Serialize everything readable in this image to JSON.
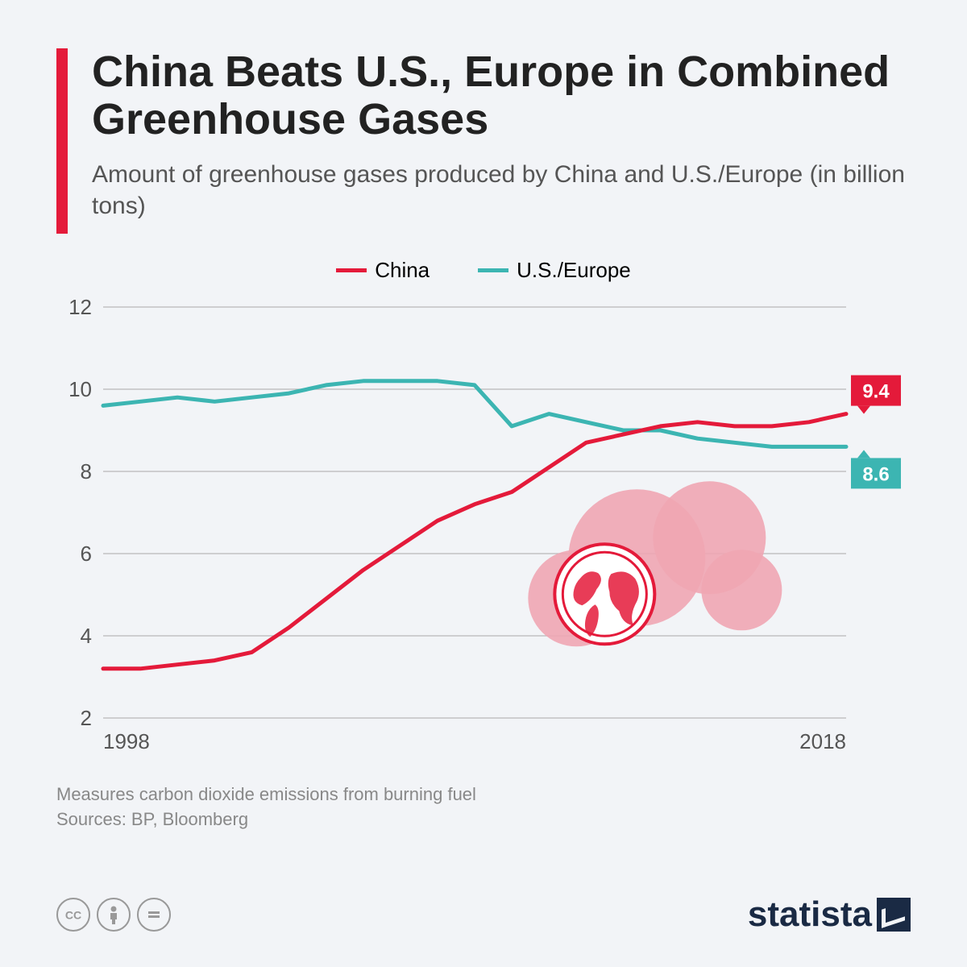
{
  "title": "China Beats U.S., Europe in Combined Greenhouse Gases",
  "subtitle": "Amount of greenhouse gases produced by China and U.S./Europe (in billion tons)",
  "legend": {
    "china": {
      "label": "China",
      "color": "#e41a3a"
    },
    "us_eu": {
      "label": "U.S./Europe",
      "color": "#3cb5b2"
    }
  },
  "chart": {
    "type": "line",
    "background_color": "#f2f4f7",
    "grid_color": "#b8b8b8",
    "axis_text_color": "#555",
    "tick_fontsize": 26,
    "x_range": [
      1998,
      2018
    ],
    "x_ticks": [
      1998,
      2018
    ],
    "y_range": [
      2,
      12
    ],
    "y_ticks": [
      2,
      4,
      6,
      8,
      10,
      12
    ],
    "line_width": 5,
    "series": {
      "china": {
        "color": "#e41a3a",
        "end_label": "9.4",
        "label_bg": "#e41a3a",
        "points": [
          [
            1998,
            3.2
          ],
          [
            1999,
            3.2
          ],
          [
            2000,
            3.3
          ],
          [
            2001,
            3.4
          ],
          [
            2002,
            3.6
          ],
          [
            2003,
            4.2
          ],
          [
            2004,
            4.9
          ],
          [
            2005,
            5.6
          ],
          [
            2006,
            6.2
          ],
          [
            2007,
            6.8
          ],
          [
            2008,
            7.2
          ],
          [
            2009,
            7.5
          ],
          [
            2010,
            8.1
          ],
          [
            2011,
            8.7
          ],
          [
            2012,
            8.9
          ],
          [
            2013,
            9.1
          ],
          [
            2014,
            9.2
          ],
          [
            2015,
            9.1
          ],
          [
            2016,
            9.1
          ],
          [
            2017,
            9.2
          ],
          [
            2018,
            9.4
          ]
        ]
      },
      "us_eu": {
        "color": "#3cb5b2",
        "end_label": "8.6",
        "label_bg": "#3cb5b2",
        "points": [
          [
            1998,
            9.6
          ],
          [
            1999,
            9.7
          ],
          [
            2000,
            9.8
          ],
          [
            2001,
            9.7
          ],
          [
            2002,
            9.8
          ],
          [
            2003,
            9.9
          ],
          [
            2004,
            10.1
          ],
          [
            2005,
            10.2
          ],
          [
            2006,
            10.2
          ],
          [
            2007,
            10.2
          ],
          [
            2008,
            10.1
          ],
          [
            2009,
            9.1
          ],
          [
            2010,
            9.4
          ],
          [
            2011,
            9.2
          ],
          [
            2012,
            9.0
          ],
          [
            2013,
            9.0
          ],
          [
            2014,
            8.8
          ],
          [
            2015,
            8.7
          ],
          [
            2016,
            8.6
          ],
          [
            2017,
            8.6
          ],
          [
            2018,
            8.6
          ]
        ]
      }
    },
    "globe": {
      "cx_year": 2011.5,
      "cy_val": 5.7,
      "cloud_color": "#f0a6b2",
      "globe_stroke": "#e41a3a",
      "globe_fill": "#ffffff"
    }
  },
  "footnote_line1": "Measures carbon dioxide emissions from burning fuel",
  "footnote_line2": "Sources: BP, Bloomberg",
  "brand": "statista",
  "cc": [
    "cc",
    "by",
    "nd"
  ]
}
